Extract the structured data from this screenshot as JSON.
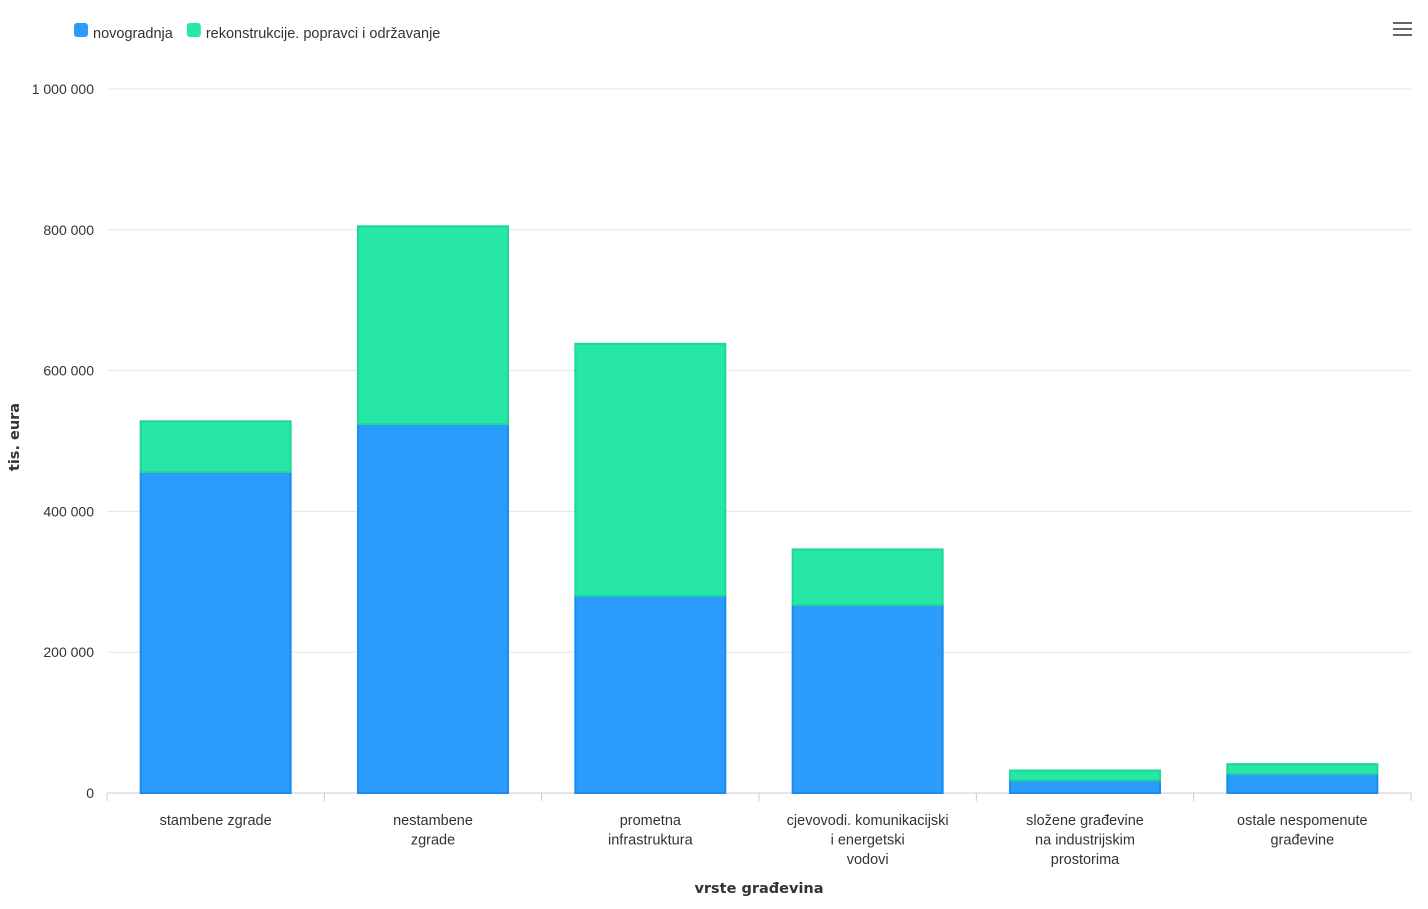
{
  "chart_data": {
    "type": "bar",
    "stacked": true,
    "categories": [
      [
        "stambene zgrade"
      ],
      [
        "nestambene",
        "zgrade"
      ],
      [
        "prometna",
        "infrastruktura"
      ],
      [
        "cjevovodi. komunikacijski",
        "i energetski",
        "vodovi"
      ],
      [
        "složene građevine",
        "na industrijskim",
        "prostorima"
      ],
      [
        "ostale nespomenute",
        "građevine"
      ]
    ],
    "series": [
      {
        "name": "novogradnja",
        "color": "#2b9cfc",
        "stroke": "#1a8cf0",
        "values": [
          456000,
          524000,
          280000,
          267000,
          18000,
          27000
        ]
      },
      {
        "name": "rekonstrukcije. popravci i održavanje",
        "color": "#26e7a6",
        "stroke": "#1fd696",
        "values": [
          72000,
          281000,
          358000,
          79000,
          14000,
          14000
        ]
      }
    ],
    "ylim": [
      0,
      1000000
    ],
    "yticks": [
      0,
      200000,
      400000,
      600000,
      800000,
      1000000
    ],
    "ytick_labels": [
      "0",
      "200 000",
      "400 000",
      "600 000",
      "800 000",
      "1 000 000"
    ],
    "ylabel": "tis. eura",
    "xlabel": "vrste građevina",
    "legend_position": "top-left",
    "grid": true
  },
  "menu": {
    "icon": "hamburger-menu-icon"
  }
}
